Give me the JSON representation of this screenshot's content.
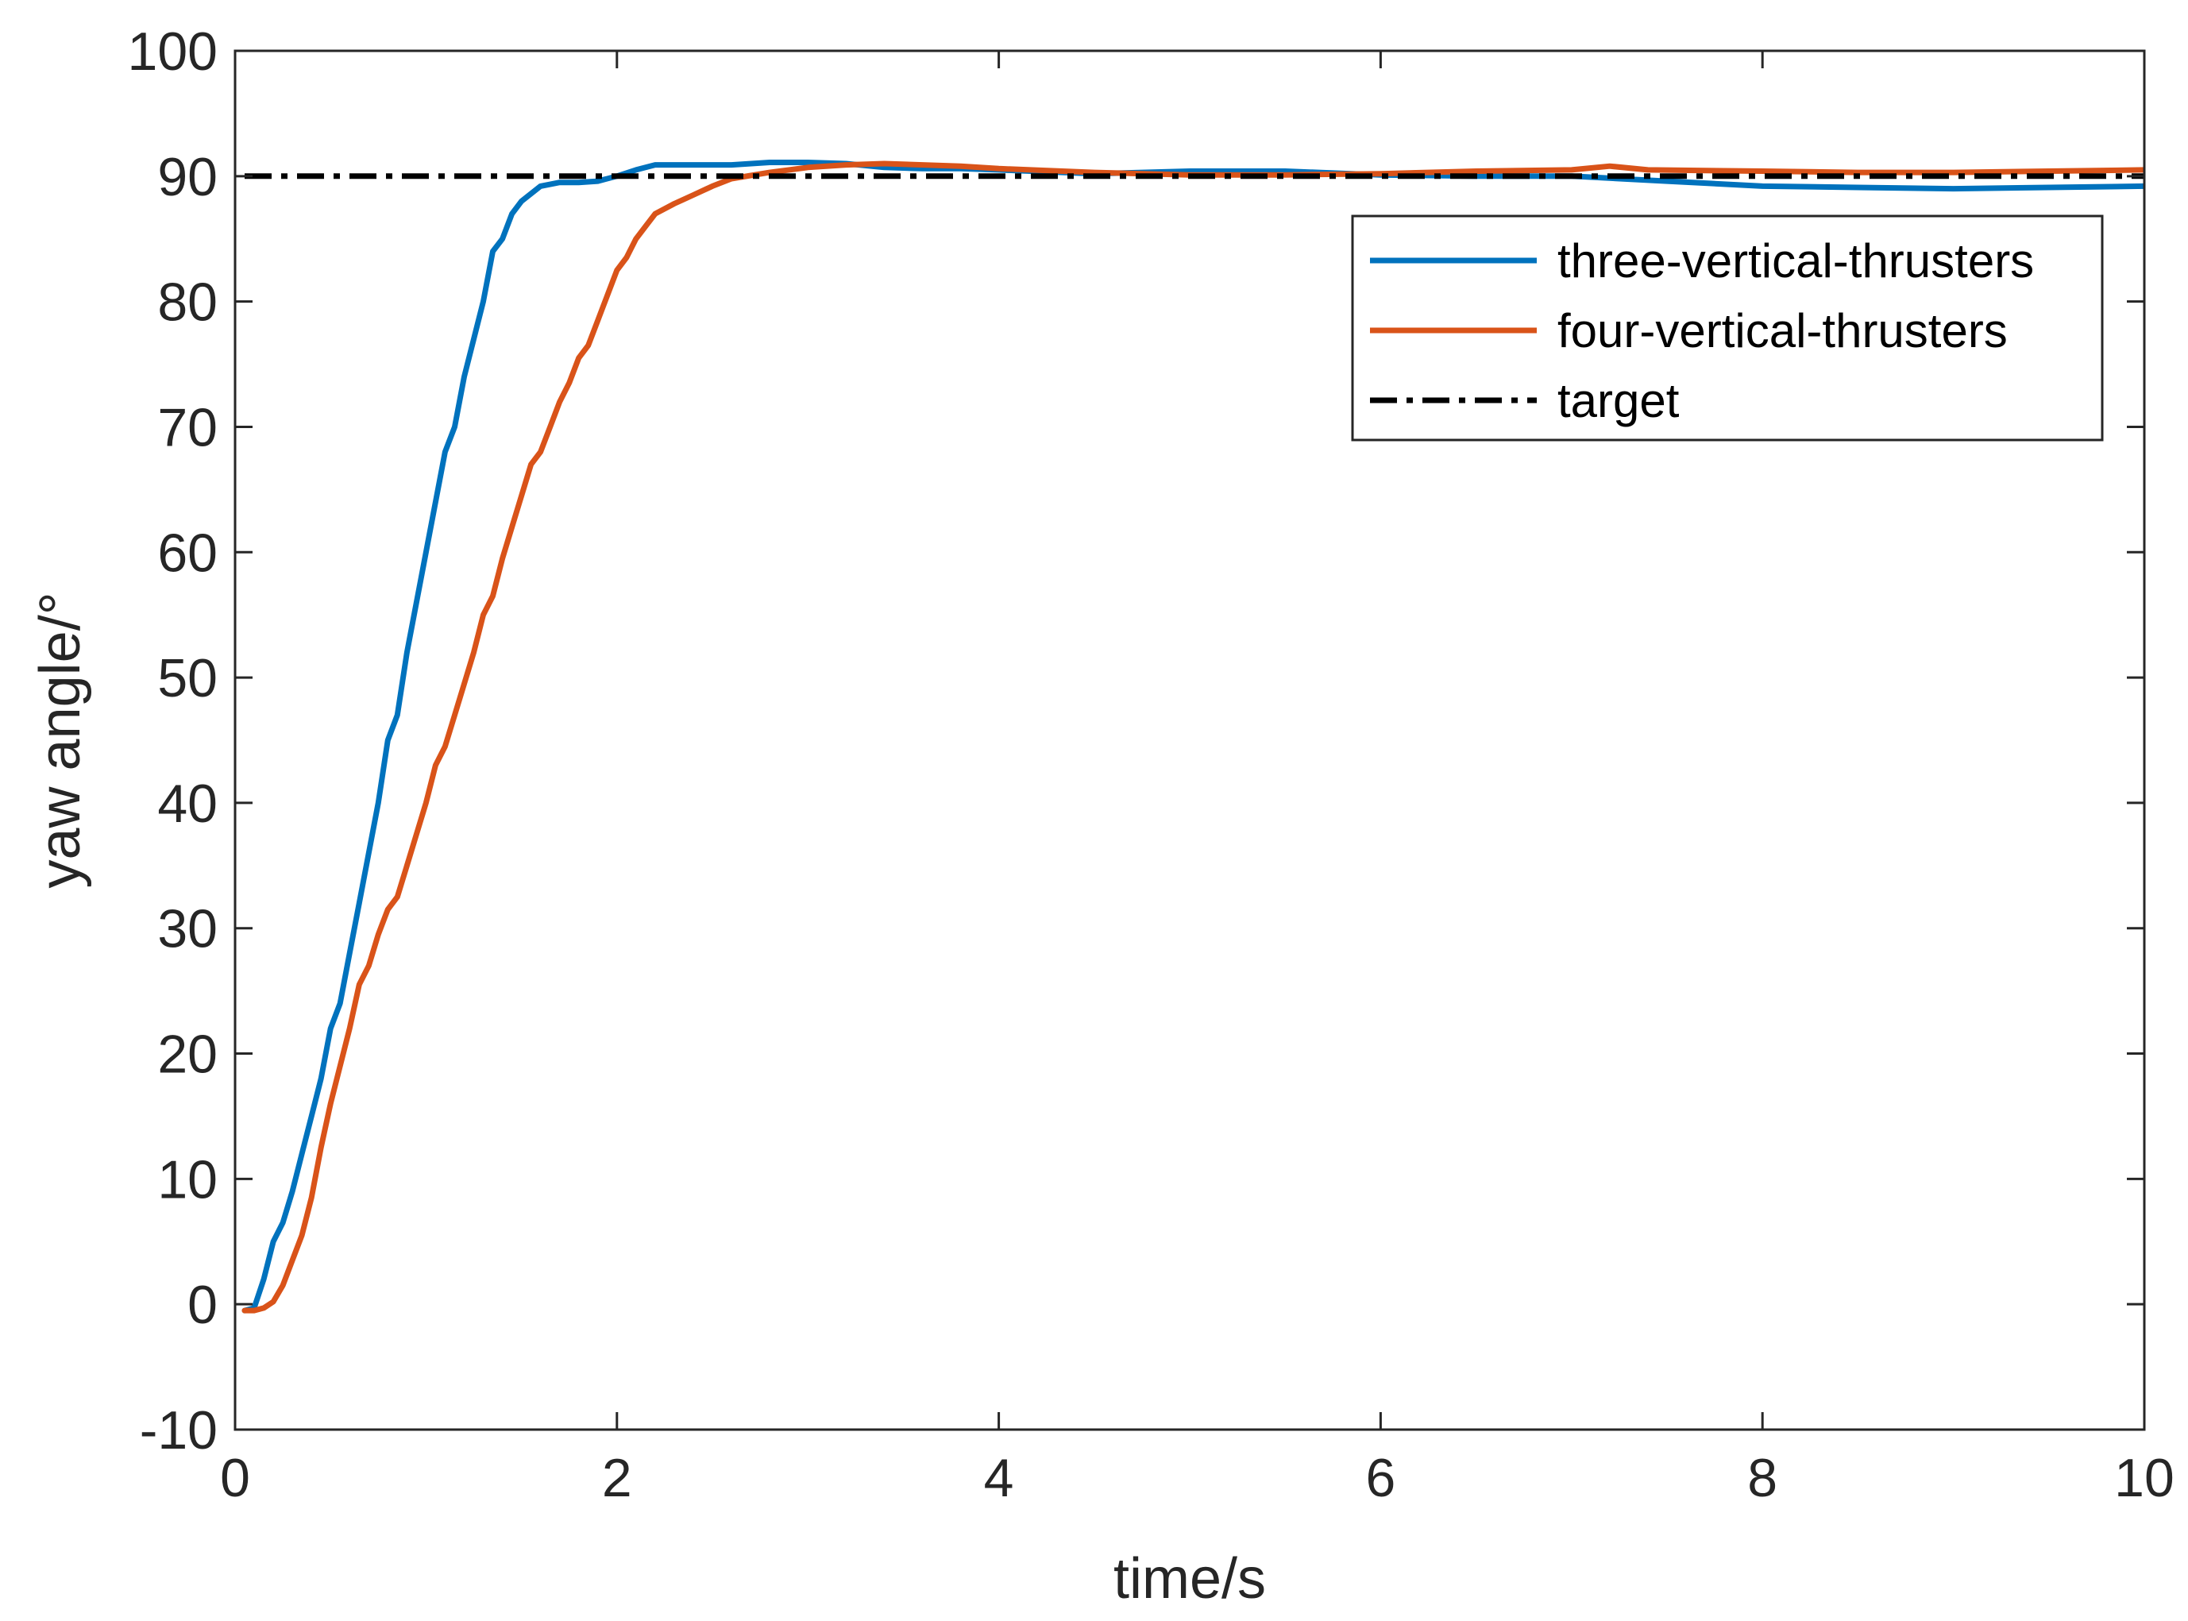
{
  "chart_data": {
    "type": "line",
    "title": "",
    "xlabel": "time/s",
    "ylabel": "yaw angle/°",
    "xlim": [
      0,
      10
    ],
    "ylim": [
      -10,
      100
    ],
    "xticks": [
      "0",
      "2",
      "4",
      "6",
      "8",
      "10"
    ],
    "yticks": [
      "-10",
      "0",
      "10",
      "20",
      "30",
      "40",
      "50",
      "60",
      "70",
      "80",
      "90",
      "100"
    ],
    "grid": false,
    "legend_position": "top-right",
    "series": [
      {
        "name": "three-vertical-thrusters",
        "color": "#0072BD",
        "style": "solid",
        "points": [
          [
            0.05,
            -0.5
          ],
          [
            0.1,
            -0.3
          ],
          [
            0.15,
            2
          ],
          [
            0.2,
            5
          ],
          [
            0.25,
            6.5
          ],
          [
            0.3,
            9
          ],
          [
            0.35,
            12
          ],
          [
            0.4,
            15
          ],
          [
            0.45,
            18
          ],
          [
            0.5,
            22
          ],
          [
            0.55,
            24
          ],
          [
            0.6,
            28
          ],
          [
            0.65,
            32
          ],
          [
            0.7,
            36
          ],
          [
            0.75,
            40
          ],
          [
            0.8,
            45
          ],
          [
            0.85,
            47
          ],
          [
            0.9,
            52
          ],
          [
            0.95,
            56
          ],
          [
            1.0,
            60
          ],
          [
            1.05,
            64
          ],
          [
            1.1,
            68
          ],
          [
            1.15,
            70
          ],
          [
            1.2,
            74
          ],
          [
            1.25,
            77
          ],
          [
            1.3,
            80
          ],
          [
            1.35,
            84
          ],
          [
            1.4,
            85
          ],
          [
            1.45,
            87
          ],
          [
            1.5,
            88
          ],
          [
            1.6,
            89.2
          ],
          [
            1.7,
            89.5
          ],
          [
            1.8,
            89.5
          ],
          [
            1.9,
            89.6
          ],
          [
            2.0,
            90
          ],
          [
            2.1,
            90.5
          ],
          [
            2.2,
            90.9
          ],
          [
            2.4,
            90.9
          ],
          [
            2.6,
            90.9
          ],
          [
            2.8,
            91.1
          ],
          [
            3.0,
            91.1
          ],
          [
            3.2,
            91.0
          ],
          [
            3.4,
            90.7
          ],
          [
            3.6,
            90.6
          ],
          [
            3.8,
            90.6
          ],
          [
            4.0,
            90.5
          ],
          [
            4.5,
            90.2
          ],
          [
            5.0,
            90.4
          ],
          [
            5.5,
            90.4
          ],
          [
            6.0,
            90.1
          ],
          [
            6.5,
            90.0
          ],
          [
            7.0,
            90.0
          ],
          [
            7.5,
            89.6
          ],
          [
            8.0,
            89.2
          ],
          [
            8.5,
            89.1
          ],
          [
            9.0,
            89.0
          ],
          [
            9.5,
            89.1
          ],
          [
            10.0,
            89.2
          ]
        ]
      },
      {
        "name": "four-vertical-thrusters",
        "color": "#D95319",
        "style": "solid",
        "points": [
          [
            0.05,
            -0.5
          ],
          [
            0.1,
            -0.5
          ],
          [
            0.15,
            -0.3
          ],
          [
            0.2,
            0.2
          ],
          [
            0.25,
            1.5
          ],
          [
            0.3,
            3.5
          ],
          [
            0.35,
            5.5
          ],
          [
            0.4,
            8.5
          ],
          [
            0.45,
            12.5
          ],
          [
            0.5,
            16
          ],
          [
            0.55,
            19
          ],
          [
            0.6,
            22
          ],
          [
            0.65,
            25.5
          ],
          [
            0.7,
            27
          ],
          [
            0.75,
            29.5
          ],
          [
            0.8,
            31.5
          ],
          [
            0.85,
            32.5
          ],
          [
            0.9,
            35
          ],
          [
            0.95,
            37.5
          ],
          [
            1.0,
            40
          ],
          [
            1.05,
            43
          ],
          [
            1.1,
            44.5
          ],
          [
            1.15,
            47
          ],
          [
            1.2,
            49.5
          ],
          [
            1.25,
            52
          ],
          [
            1.3,
            55
          ],
          [
            1.35,
            56.5
          ],
          [
            1.4,
            59.5
          ],
          [
            1.45,
            62
          ],
          [
            1.5,
            64.5
          ],
          [
            1.55,
            67
          ],
          [
            1.6,
            68
          ],
          [
            1.65,
            70
          ],
          [
            1.7,
            72
          ],
          [
            1.75,
            73.5
          ],
          [
            1.8,
            75.5
          ],
          [
            1.85,
            76.5
          ],
          [
            1.9,
            78.5
          ],
          [
            1.95,
            80.5
          ],
          [
            2.0,
            82.5
          ],
          [
            2.05,
            83.5
          ],
          [
            2.1,
            85
          ],
          [
            2.15,
            86
          ],
          [
            2.2,
            87
          ],
          [
            2.3,
            87.8
          ],
          [
            2.4,
            88.5
          ],
          [
            2.5,
            89.2
          ],
          [
            2.6,
            89.8
          ],
          [
            2.8,
            90.3
          ],
          [
            3.0,
            90.7
          ],
          [
            3.2,
            90.9
          ],
          [
            3.4,
            91.0
          ],
          [
            3.6,
            90.9
          ],
          [
            3.8,
            90.8
          ],
          [
            4.0,
            90.6
          ],
          [
            4.5,
            90.3
          ],
          [
            5.0,
            90.1
          ],
          [
            5.5,
            90.1
          ],
          [
            6.0,
            90.2
          ],
          [
            6.5,
            90.4
          ],
          [
            7.0,
            90.5
          ],
          [
            7.2,
            90.8
          ],
          [
            7.4,
            90.5
          ],
          [
            8.0,
            90.4
          ],
          [
            8.5,
            90.3
          ],
          [
            9.0,
            90.3
          ],
          [
            9.5,
            90.4
          ],
          [
            10.0,
            90.5
          ]
        ]
      },
      {
        "name": "target",
        "color": "#000000",
        "style": "dashdot",
        "points": [
          [
            0.05,
            90
          ],
          [
            10.0,
            90
          ]
        ]
      }
    ]
  }
}
